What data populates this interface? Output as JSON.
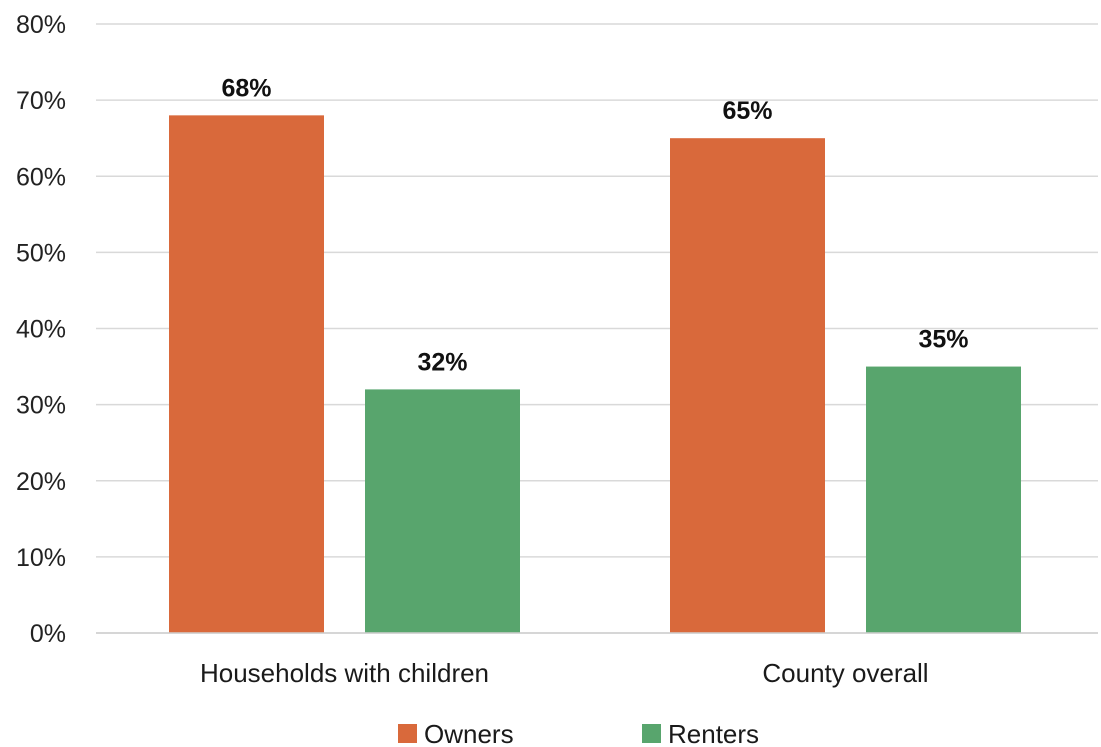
{
  "chart_data": {
    "type": "bar",
    "categories": [
      "Households with children",
      "County overall"
    ],
    "series": [
      {
        "name": "Owners",
        "values": [
          68,
          65
        ],
        "labels": [
          "68%",
          "65%"
        ],
        "color": "#D9693B"
      },
      {
        "name": "Renters",
        "values": [
          32,
          35
        ],
        "labels": [
          "32%",
          "35%"
        ],
        "color": "#58A56D"
      }
    ],
    "unit": "%",
    "ylim": [
      0,
      80
    ],
    "yticks": [
      0,
      10,
      20,
      30,
      40,
      50,
      60,
      70,
      80
    ],
    "ytick_labels": [
      "0%",
      "10%",
      "20%",
      "30%",
      "40%",
      "50%",
      "60%",
      "70%",
      "80%"
    ],
    "grid": true,
    "legend": "bottom-center"
  }
}
